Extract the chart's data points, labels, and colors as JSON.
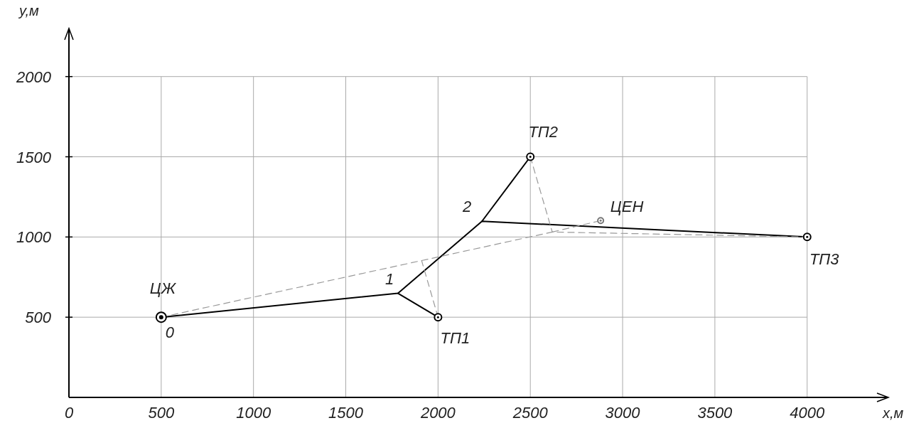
{
  "chart_data": {
    "type": "line",
    "xlabel": "x,м",
    "ylabel": "y,м",
    "xlim": [
      0,
      4440
    ],
    "ylim": [
      0,
      2300
    ],
    "xticks": [
      0,
      500,
      1000,
      1500,
      2000,
      2500,
      3000,
      3500,
      4000
    ],
    "yticks": [
      500,
      1000,
      1500,
      2000
    ],
    "grid": true,
    "marker": "none",
    "series": [
      {
        "color": "#000000",
        "line_style": "solid",
        "x": [
          500,
          1783,
          2238,
          4000
        ],
        "values": [
          500,
          649,
          1098,
          1000
        ]
      },
      {
        "color": "#000000",
        "line_style": "solid",
        "x": [
          1783,
          2000
        ],
        "values": [
          649,
          500
        ]
      },
      {
        "color": "#000000",
        "line_style": "solid",
        "x": [
          2238,
          2500
        ],
        "values": [
          1098,
          1500
        ]
      },
      {
        "color": "#999999",
        "line_style": "dashed",
        "x": [
          500,
          1911,
          2619,
          4000
        ],
        "values": [
          500,
          853,
          1031,
          1000
        ]
      },
      {
        "color": "#999999",
        "line_style": "dashed",
        "x": [
          2000,
          1911
        ],
        "values": [
          500,
          853
        ]
      },
      {
        "color": "#999999",
        "line_style": "dashed",
        "x": [
          2500,
          2619
        ],
        "values": [
          1500,
          1031
        ]
      },
      {
        "color": "#999999",
        "line_style": "dashed",
        "x": [
          2619,
          2881
        ],
        "values": [
          1031,
          1102
        ]
      },
      {
        "type": "scatter",
        "color": "#000000",
        "marker": "circle",
        "x": [
          500
        ],
        "values": [
          500
        ]
      },
      {
        "type": "scatter",
        "color": "#000000",
        "marker": "circle",
        "x": [
          2000,
          2500,
          4000
        ],
        "values": [
          500,
          1500,
          1000
        ]
      },
      {
        "type": "scatter",
        "color": "#777777",
        "marker": "circle",
        "x": [
          2881
        ],
        "values": [
          1102
        ]
      }
    ],
    "annotations": [
      {
        "text": "ЦЖ",
        "x": 500,
        "y": 500
      },
      {
        "text": "0",
        "x": 500,
        "y": 500
      },
      {
        "text": "1",
        "x": 1783,
        "y": 649
      },
      {
        "text": "2",
        "x": 2238,
        "y": 1098
      },
      {
        "text": "ТП1",
        "x": 2000,
        "y": 500
      },
      {
        "text": "ТП2",
        "x": 2500,
        "y": 1500
      },
      {
        "text": "ТП3",
        "x": 4000,
        "y": 1000
      },
      {
        "text": "ЦЕН",
        "x": 2881,
        "y": 1102
      }
    ]
  }
}
